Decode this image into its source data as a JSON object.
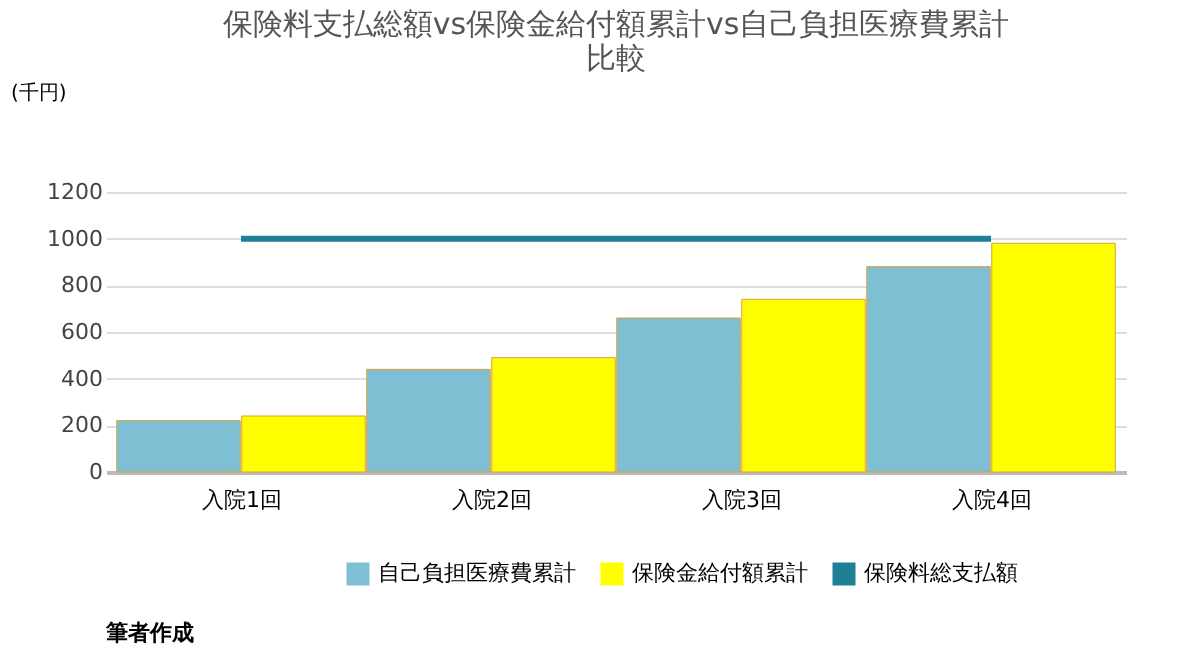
{
  "chart_data": {
    "type": "bar",
    "title": [
      "保険料支払総額vs保険金給付額累計vs自己負担医療費累計",
      "比較"
    ],
    "ylabel": "(千円)",
    "categories": [
      "入院1回",
      "入院2回",
      "入院3回",
      "入院4回"
    ],
    "series": [
      {
        "name": "自己負担医療費累計",
        "color": "#7fbfd4",
        "values": [
          220,
          440,
          660,
          880
        ]
      },
      {
        "name": "保険金給付額累計",
        "color": "#ffff00",
        "values": [
          240,
          490,
          740,
          980
        ]
      },
      {
        "name": "保険料総支払額",
        "color": "#1f7f96",
        "type": "line",
        "values": [
          1000,
          1000,
          1000,
          1000
        ]
      }
    ],
    "ylim": [
      0,
      1200
    ],
    "yticks": [
      0,
      200,
      400,
      600,
      800,
      1000,
      1200
    ],
    "grid": "y",
    "legend": "bottom",
    "annotations": [
      "筆者作成"
    ]
  }
}
